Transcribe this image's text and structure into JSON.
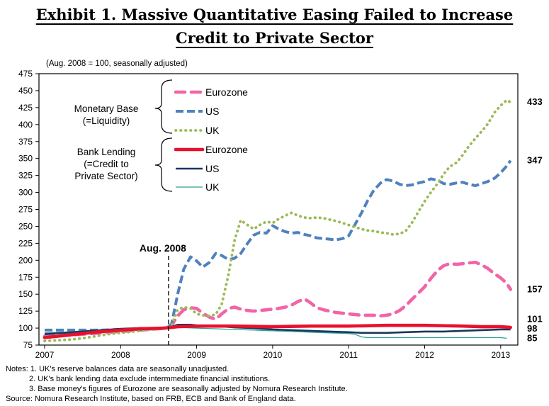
{
  "title": {
    "line1": "Exhibit 1. Massive Quantitative Easing Failed to Increase",
    "line2": "Credit to Private Sector"
  },
  "subtitle": "(Aug. 2008 = 100, seasonally adjusted)",
  "annotation": {
    "text": "Aug. 2008",
    "year": 2008.63
  },
  "legend": {
    "groups": [
      {
        "label_lines": [
          "Monetary Base",
          "(=Liquidity)"
        ],
        "series": [
          0,
          1,
          2
        ]
      },
      {
        "label_lines": [
          "Bank Lending",
          "(=Credit to",
          "Private Sector)"
        ],
        "series": [
          3,
          4,
          5
        ]
      }
    ]
  },
  "notes": {
    "line1": "Notes: 1. UK's reserve balances data are seasonally unadjusted.",
    "line2": "2. UK's bank lending data exclude intermmediate  financial institutions.",
    "line3": "3. Base money's figures of Eurozone are seasonally adjusted by Nomura Research  Institute.",
    "source": "Source: Nomura Research Institute, based on FRB, ECB and Bank of England data."
  },
  "chart_data": {
    "type": "line",
    "title": "Exhibit 1. Massive Quantitative Easing Failed to Increase Credit to Private Sector",
    "subtitle": "(Aug. 2008 = 100, seasonally adjusted)",
    "xlabel": "",
    "ylabel": "",
    "xlim": [
      2007,
      2013.25
    ],
    "ylim": [
      75,
      475
    ],
    "x_ticks": [
      2007,
      2008,
      2009,
      2010,
      2011,
      2012,
      2013
    ],
    "y_ticks": [
      475,
      450,
      425,
      400,
      375,
      350,
      325,
      300,
      275,
      250,
      225,
      200,
      175,
      150,
      125,
      100,
      75
    ],
    "grid": false,
    "annotation_vline_year": 2008.63,
    "end_label_color": "#17375E",
    "end_labels": [
      {
        "series": "UK monetary base",
        "value": 433
      },
      {
        "series": "US monetary base",
        "value": 347
      },
      {
        "series": "Eurozone monetary base",
        "value": 157
      },
      {
        "series": "Eurozone bank lending",
        "value": 101
      },
      {
        "series": "US bank lending",
        "value": 98
      },
      {
        "series": "UK bank lending",
        "value": 85
      }
    ],
    "series": [
      {
        "name": "Eurozone",
        "group": "Monetary Base (=Liquidity)",
        "color": "#F264A8",
        "width": 4.6,
        "dash": "13 9",
        "cap": "round",
        "points": [
          [
            2007.0,
            88
          ],
          [
            2007.25,
            89
          ],
          [
            2007.5,
            91
          ],
          [
            2007.75,
            93
          ],
          [
            2008.0,
            95
          ],
          [
            2008.25,
            97
          ],
          [
            2008.5,
            99
          ],
          [
            2008.58,
            100
          ],
          [
            2008.67,
            104
          ],
          [
            2008.75,
            118
          ],
          [
            2008.83,
            127
          ],
          [
            2008.92,
            130
          ],
          [
            2009.0,
            129
          ],
          [
            2009.08,
            122
          ],
          [
            2009.17,
            116
          ],
          [
            2009.25,
            113
          ],
          [
            2009.33,
            121
          ],
          [
            2009.42,
            129
          ],
          [
            2009.5,
            131
          ],
          [
            2009.58,
            128
          ],
          [
            2009.67,
            126
          ],
          [
            2009.75,
            125
          ],
          [
            2009.83,
            126
          ],
          [
            2009.92,
            127
          ],
          [
            2010.0,
            128
          ],
          [
            2010.08,
            129
          ],
          [
            2010.17,
            131
          ],
          [
            2010.25,
            134
          ],
          [
            2010.33,
            139
          ],
          [
            2010.42,
            143
          ],
          [
            2010.5,
            137
          ],
          [
            2010.58,
            130
          ],
          [
            2010.67,
            127
          ],
          [
            2010.75,
            125
          ],
          [
            2010.83,
            123
          ],
          [
            2010.92,
            122
          ],
          [
            2011.0,
            121
          ],
          [
            2011.08,
            120
          ],
          [
            2011.17,
            119
          ],
          [
            2011.25,
            119
          ],
          [
            2011.33,
            119
          ],
          [
            2011.42,
            118
          ],
          [
            2011.5,
            119
          ],
          [
            2011.58,
            121
          ],
          [
            2011.67,
            126
          ],
          [
            2011.75,
            133
          ],
          [
            2011.83,
            142
          ],
          [
            2011.92,
            152
          ],
          [
            2012.0,
            161
          ],
          [
            2012.08,
            173
          ],
          [
            2012.17,
            185
          ],
          [
            2012.25,
            192
          ],
          [
            2012.33,
            195
          ],
          [
            2012.42,
            194
          ],
          [
            2012.5,
            195
          ],
          [
            2012.58,
            196
          ],
          [
            2012.67,
            197
          ],
          [
            2012.75,
            193
          ],
          [
            2012.83,
            188
          ],
          [
            2012.92,
            180
          ],
          [
            2013.0,
            174
          ],
          [
            2013.08,
            166
          ],
          [
            2013.13,
            157
          ]
        ]
      },
      {
        "name": "US",
        "group": "Monetary Base (=Liquidity)",
        "color": "#4F81BD",
        "width": 4.0,
        "dash": "11 5",
        "cap": "butt",
        "points": [
          [
            2007.0,
            97
          ],
          [
            2007.25,
            97
          ],
          [
            2007.5,
            97
          ],
          [
            2007.75,
            97
          ],
          [
            2008.0,
            98
          ],
          [
            2008.25,
            98
          ],
          [
            2008.5,
            99
          ],
          [
            2008.58,
            100
          ],
          [
            2008.67,
            106
          ],
          [
            2008.75,
            150
          ],
          [
            2008.83,
            187
          ],
          [
            2008.92,
            205
          ],
          [
            2009.0,
            199
          ],
          [
            2009.08,
            190
          ],
          [
            2009.17,
            197
          ],
          [
            2009.25,
            210
          ],
          [
            2009.33,
            207
          ],
          [
            2009.42,
            201
          ],
          [
            2009.5,
            203
          ],
          [
            2009.58,
            210
          ],
          [
            2009.67,
            225
          ],
          [
            2009.75,
            237
          ],
          [
            2009.83,
            241
          ],
          [
            2009.92,
            240
          ],
          [
            2010.0,
            251
          ],
          [
            2010.08,
            246
          ],
          [
            2010.17,
            242
          ],
          [
            2010.25,
            240
          ],
          [
            2010.33,
            241
          ],
          [
            2010.42,
            238
          ],
          [
            2010.5,
            236
          ],
          [
            2010.58,
            233
          ],
          [
            2010.67,
            232
          ],
          [
            2010.75,
            231
          ],
          [
            2010.83,
            230
          ],
          [
            2010.92,
            232
          ],
          [
            2011.0,
            236
          ],
          [
            2011.08,
            252
          ],
          [
            2011.17,
            270
          ],
          [
            2011.25,
            288
          ],
          [
            2011.33,
            303
          ],
          [
            2011.42,
            314
          ],
          [
            2011.5,
            319
          ],
          [
            2011.58,
            317
          ],
          [
            2011.67,
            312
          ],
          [
            2011.75,
            310
          ],
          [
            2011.83,
            311
          ],
          [
            2011.92,
            314
          ],
          [
            2012.0,
            316
          ],
          [
            2012.08,
            320
          ],
          [
            2012.17,
            318
          ],
          [
            2012.25,
            313
          ],
          [
            2012.33,
            312
          ],
          [
            2012.42,
            314
          ],
          [
            2012.5,
            315
          ],
          [
            2012.58,
            312
          ],
          [
            2012.67,
            310
          ],
          [
            2012.75,
            313
          ],
          [
            2012.83,
            316
          ],
          [
            2012.92,
            321
          ],
          [
            2013.0,
            329
          ],
          [
            2013.08,
            339
          ],
          [
            2013.13,
            347
          ]
        ]
      },
      {
        "name": "UK",
        "group": "Monetary Base (=Liquidity)",
        "color": "#9BBB59",
        "width": 3.8,
        "dash": "0.5 6.5",
        "cap": "round",
        "points": [
          [
            2007.0,
            81
          ],
          [
            2007.17,
            82
          ],
          [
            2007.33,
            83
          ],
          [
            2007.5,
            85
          ],
          [
            2007.67,
            88
          ],
          [
            2007.83,
            91
          ],
          [
            2008.0,
            93
          ],
          [
            2008.17,
            95
          ],
          [
            2008.33,
            97
          ],
          [
            2008.5,
            99
          ],
          [
            2008.58,
            100
          ],
          [
            2008.67,
            104
          ],
          [
            2008.75,
            127
          ],
          [
            2008.83,
            131
          ],
          [
            2008.92,
            129
          ],
          [
            2009.0,
            121
          ],
          [
            2009.08,
            119
          ],
          [
            2009.17,
            118
          ],
          [
            2009.25,
            120
          ],
          [
            2009.33,
            135
          ],
          [
            2009.42,
            180
          ],
          [
            2009.5,
            230
          ],
          [
            2009.58,
            259
          ],
          [
            2009.67,
            252
          ],
          [
            2009.75,
            246
          ],
          [
            2009.83,
            252
          ],
          [
            2009.92,
            257
          ],
          [
            2010.0,
            255
          ],
          [
            2010.08,
            261
          ],
          [
            2010.17,
            266
          ],
          [
            2010.25,
            270
          ],
          [
            2010.33,
            266
          ],
          [
            2010.42,
            263
          ],
          [
            2010.5,
            262
          ],
          [
            2010.58,
            263
          ],
          [
            2010.67,
            262
          ],
          [
            2010.75,
            260
          ],
          [
            2010.83,
            258
          ],
          [
            2010.92,
            255
          ],
          [
            2011.0,
            252
          ],
          [
            2011.08,
            249
          ],
          [
            2011.17,
            246
          ],
          [
            2011.25,
            244
          ],
          [
            2011.33,
            243
          ],
          [
            2011.42,
            241
          ],
          [
            2011.5,
            240
          ],
          [
            2011.58,
            238
          ],
          [
            2011.67,
            239
          ],
          [
            2011.75,
            243
          ],
          [
            2011.83,
            255
          ],
          [
            2011.92,
            272
          ],
          [
            2012.0,
            287
          ],
          [
            2012.08,
            300
          ],
          [
            2012.17,
            313
          ],
          [
            2012.25,
            327
          ],
          [
            2012.33,
            338
          ],
          [
            2012.42,
            344
          ],
          [
            2012.5,
            355
          ],
          [
            2012.58,
            368
          ],
          [
            2012.67,
            380
          ],
          [
            2012.75,
            390
          ],
          [
            2012.83,
            401
          ],
          [
            2012.92,
            418
          ],
          [
            2013.0,
            428
          ],
          [
            2013.08,
            436
          ],
          [
            2013.13,
            433
          ]
        ]
      },
      {
        "name": "Eurozone",
        "group": "Bank Lending (=Credit to Private Sector)",
        "color": "#E8112D",
        "width": 4.6,
        "dash": "",
        "cap": "round",
        "points": [
          [
            2007.0,
            86
          ],
          [
            2007.25,
            89
          ],
          [
            2007.5,
            92
          ],
          [
            2007.75,
            95
          ],
          [
            2008.0,
            97
          ],
          [
            2008.25,
            99
          ],
          [
            2008.58,
            100
          ],
          [
            2008.75,
            102
          ],
          [
            2009.0,
            103
          ],
          [
            2009.5,
            103
          ],
          [
            2010.0,
            102
          ],
          [
            2010.5,
            103
          ],
          [
            2011.0,
            103
          ],
          [
            2011.5,
            104
          ],
          [
            2012.0,
            104
          ],
          [
            2012.5,
            103
          ],
          [
            2012.75,
            102
          ],
          [
            2013.0,
            102
          ],
          [
            2013.13,
            101
          ]
        ]
      },
      {
        "name": "US",
        "group": "Bank Lending (=Credit to Private Sector)",
        "color": "#17375E",
        "width": 2.6,
        "dash": "",
        "cap": "butt",
        "points": [
          [
            2007.0,
            91
          ],
          [
            2007.25,
            93
          ],
          [
            2007.5,
            95
          ],
          [
            2007.75,
            97
          ],
          [
            2008.0,
            99
          ],
          [
            2008.25,
            100
          ],
          [
            2008.5,
            100
          ],
          [
            2008.67,
            102
          ],
          [
            2008.75,
            105
          ],
          [
            2008.92,
            105
          ],
          [
            2009.0,
            104
          ],
          [
            2009.25,
            103
          ],
          [
            2009.5,
            101
          ],
          [
            2009.75,
            100
          ],
          [
            2010.0,
            98
          ],
          [
            2010.25,
            97
          ],
          [
            2010.5,
            96
          ],
          [
            2010.75,
            95
          ],
          [
            2011.0,
            94
          ],
          [
            2011.17,
            93
          ],
          [
            2011.33,
            93
          ],
          [
            2011.5,
            93
          ],
          [
            2011.75,
            94
          ],
          [
            2012.0,
            95
          ],
          [
            2012.25,
            95
          ],
          [
            2012.5,
            96
          ],
          [
            2012.75,
            97
          ],
          [
            2013.0,
            98
          ],
          [
            2013.13,
            98
          ]
        ]
      },
      {
        "name": "UK",
        "group": "Bank Lending (=Credit to Private Sector)",
        "color": "#2FA094",
        "width": 1.3,
        "dash": "",
        "cap": "butt",
        "points": [
          [
            2007.0,
            93
          ],
          [
            2007.25,
            94
          ],
          [
            2007.5,
            96
          ],
          [
            2007.75,
            97
          ],
          [
            2008.0,
            98
          ],
          [
            2008.25,
            99
          ],
          [
            2008.58,
            100
          ],
          [
            2008.75,
            101
          ],
          [
            2009.0,
            100
          ],
          [
            2009.25,
            99
          ],
          [
            2009.5,
            98
          ],
          [
            2009.75,
            97
          ],
          [
            2010.0,
            96
          ],
          [
            2010.25,
            95
          ],
          [
            2010.5,
            94
          ],
          [
            2010.75,
            93
          ],
          [
            2011.0,
            92
          ],
          [
            2011.08,
            91
          ],
          [
            2011.17,
            87
          ],
          [
            2011.25,
            86
          ],
          [
            2011.5,
            86
          ],
          [
            2012.0,
            86
          ],
          [
            2012.5,
            86
          ],
          [
            2013.0,
            86
          ],
          [
            2013.08,
            85
          ]
        ]
      }
    ]
  }
}
